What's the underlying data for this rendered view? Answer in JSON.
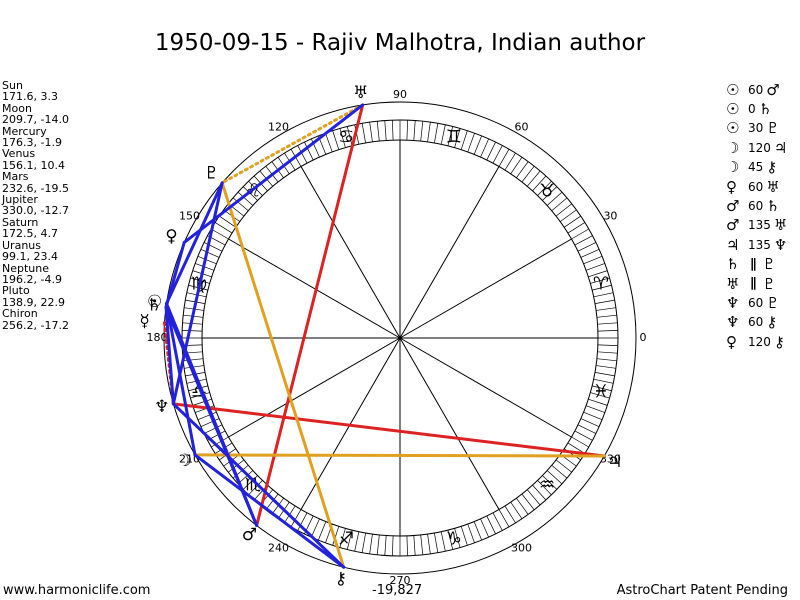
{
  "title": "1950-09-15 - Rajiv Malhotra, Indian author",
  "planets": [
    {
      "name": "Sun",
      "coords": "171.6, 3.3",
      "lon": 171.6,
      "glyph": "☉"
    },
    {
      "name": "Moon",
      "coords": "209.7, -14.0",
      "lon": 209.7,
      "glyph": "☽"
    },
    {
      "name": "Mercury",
      "coords": "176.3, -1.9",
      "lon": 176.3,
      "glyph": "☿"
    },
    {
      "name": "Venus",
      "coords": "156.1, 10.4",
      "lon": 156.1,
      "glyph": "♀"
    },
    {
      "name": "Mars",
      "coords": "232.6, -19.5",
      "lon": 232.6,
      "glyph": "♂"
    },
    {
      "name": "Jupiter",
      "coords": "330.0, -12.7",
      "lon": 330.0,
      "glyph": "♃"
    },
    {
      "name": "Saturn",
      "coords": "172.5, 4.7",
      "lon": 172.5,
      "glyph": "♄"
    },
    {
      "name": "Uranus",
      "coords": "99.1, 23.4",
      "lon": 99.1,
      "glyph": "♅"
    },
    {
      "name": "Neptune",
      "coords": "196.2, -4.9",
      "lon": 196.2,
      "glyph": "♆"
    },
    {
      "name": "Pluto",
      "coords": "138.9, 22.9",
      "lon": 138.9,
      "glyph": "♇"
    },
    {
      "name": "Chiron",
      "coords": "256.2, -17.2",
      "lon": 256.2,
      "glyph": "⚷"
    }
  ],
  "aspects": [
    {
      "p1": "Sun",
      "p2": "Mars",
      "angle": "60",
      "g1": "☉",
      "g2": "♂",
      "color": "#2222dd"
    },
    {
      "p1": "Sun",
      "p2": "Saturn",
      "angle": "0",
      "g1": "☉",
      "g2": "♄",
      "color": "#2222dd"
    },
    {
      "p1": "Sun",
      "p2": "Pluto",
      "angle": "30",
      "g1": "☉",
      "g2": "♇",
      "color": "#2222dd"
    },
    {
      "p1": "Moon",
      "p2": "Jupiter",
      "angle": "120",
      "g1": "☽",
      "g2": "♃",
      "color": "#dd2222"
    },
    {
      "p1": "Moon",
      "p2": "Chiron",
      "angle": "45",
      "g1": "☽",
      "g2": "⚷",
      "color": "#2222dd"
    },
    {
      "p1": "Venus",
      "p2": "Uranus",
      "angle": "60",
      "g1": "♀",
      "g2": "♅",
      "color": "#2222dd"
    },
    {
      "p1": "Mars",
      "p2": "Saturn",
      "angle": "60",
      "g1": "♂",
      "g2": "♄",
      "color": "#2222dd"
    },
    {
      "p1": "Mars",
      "p2": "Uranus",
      "angle": "135",
      "g1": "♂",
      "g2": "♅",
      "color": "#dd2222"
    },
    {
      "p1": "Jupiter",
      "p2": "Neptune",
      "angle": "135",
      "g1": "♃",
      "g2": "♆",
      "color": "#dd2222"
    },
    {
      "p1": "Saturn",
      "p2": "Pluto",
      "angle": "",
      "g1": "♄",
      "g2": "♇",
      "symbol": "∥",
      "color": "#2222dd"
    },
    {
      "p1": "Uranus",
      "p2": "Pluto",
      "angle": "",
      "g1": "♅",
      "g2": "♇",
      "symbol": "∥",
      "color": "#2222dd"
    },
    {
      "p1": "Neptune",
      "p2": "Pluto",
      "angle": "60",
      "g1": "♆",
      "g2": "♇",
      "color": "#2222dd"
    },
    {
      "p1": "Neptune",
      "p2": "Chiron",
      "angle": "60",
      "g1": "♆",
      "g2": "⚷",
      "color": "#2222dd"
    },
    {
      "p1": "Venus",
      "p2": "Chiron",
      "angle": "120",
      "g1": "♀",
      "g2": "⚷",
      "color": "#dd2222"
    }
  ],
  "chart_lines": [
    {
      "from": "Uranus",
      "to": "Mars",
      "color": "#dd2222",
      "style": "solid"
    },
    {
      "from": "Neptune",
      "to": "Jupiter",
      "color": "#dd2222",
      "style": "solid"
    },
    {
      "from": "Moon",
      "to": "Jupiter",
      "color": "#e0a020",
      "style": "solid"
    },
    {
      "from": "Pluto",
      "to": "Chiron",
      "color": "#e0a020",
      "style": "solid"
    },
    {
      "from": "Uranus",
      "to": "Pluto",
      "color": "#e0a020",
      "style": "dotted"
    },
    {
      "from": "Mercury",
      "to": "Neptune",
      "color": "#dd2222",
      "style": "dotted"
    },
    {
      "from": "Uranus",
      "to": "Venus",
      "color": "#2222dd",
      "style": "solid"
    },
    {
      "from": "Pluto",
      "to": "Sun",
      "color": "#2222dd",
      "style": "solid"
    },
    {
      "from": "Venus",
      "to": "Saturn",
      "color": "#2222dd",
      "style": "solid"
    },
    {
      "from": "Sun",
      "to": "Mars",
      "color": "#2222dd",
      "style": "solid"
    },
    {
      "from": "Saturn",
      "to": "Mars",
      "color": "#2222dd",
      "style": "solid"
    },
    {
      "from": "Saturn",
      "to": "Neptune",
      "color": "#2222dd",
      "style": "solid"
    },
    {
      "from": "Neptune",
      "to": "Chiron",
      "color": "#2222dd",
      "style": "solid"
    },
    {
      "from": "Moon",
      "to": "Chiron",
      "color": "#2222dd",
      "style": "solid"
    },
    {
      "from": "Pluto",
      "to": "Neptune",
      "color": "#2222dd",
      "style": "solid"
    },
    {
      "from": "Sun",
      "to": "Moon",
      "color": "#2222dd",
      "style": "solid"
    }
  ],
  "degree_labels": [
    "0",
    "30",
    "60",
    "90",
    "120",
    "150",
    "180",
    "210",
    "240",
    "270",
    "300",
    "330"
  ],
  "zodiac_glyphs": [
    "♈",
    "♉",
    "♊",
    "♋",
    "♌",
    "♍",
    "♎",
    "♏",
    "♐",
    "♑",
    "♒",
    "♓"
  ],
  "footer": {
    "website": "www.harmoniclife.com",
    "value": "-19,827",
    "credit": "AstroChart Patent Pending"
  },
  "colors": {
    "hard_aspect": "#dd2222",
    "soft_aspect": "#2222dd",
    "minor_aspect": "#e0a020"
  }
}
